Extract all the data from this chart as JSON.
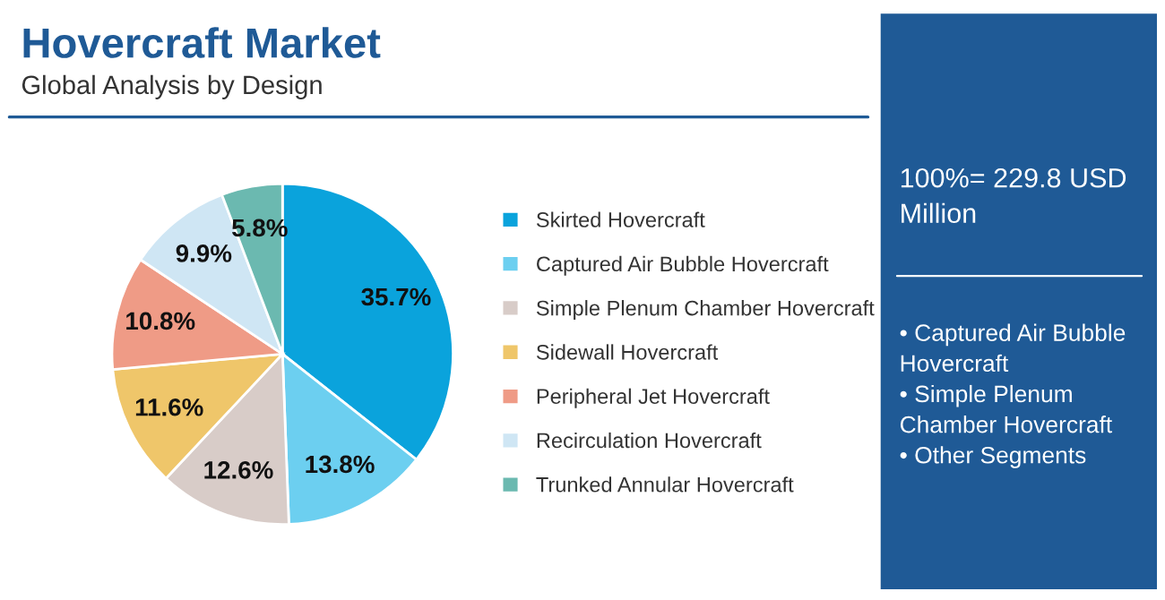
{
  "chart_data": {
    "type": "pie",
    "title": "Hovercraft Market",
    "subtitle": "Global Analysis by Design",
    "categories": [
      "Skirted Hovercraft",
      "Captured Air Bubble Hovercraft",
      "Simple Plenum Chamber Hovercraft",
      "Sidewall Hovercraft",
      "Peripheral Jet Hovercraft",
      "Recirculation Hovercraft",
      "Trunked Annular Hovercraft"
    ],
    "values": [
      35.7,
      13.8,
      12.6,
      11.6,
      10.8,
      9.9,
      5.8
    ],
    "value_labels": [
      "35.7%",
      "13.8%",
      "12.6%",
      "11.6%",
      "10.8%",
      "9.9%",
      "5.8%"
    ],
    "colors": [
      "#0aa3dc",
      "#6ccff0",
      "#d8ccc8",
      "#efc66a",
      "#ef9b86",
      "#cfe6f4",
      "#6bb9b0"
    ],
    "legend": "right",
    "annotations": [
      "100%= 229.8 USD Million",
      "• Captured Air Bubble Hovercraft\n• Simple Plenum Chamber Hovercraft\n• Other Segments"
    ]
  }
}
